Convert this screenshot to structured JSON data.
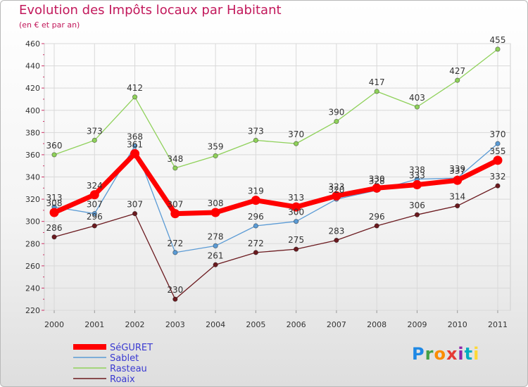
{
  "header": {
    "title": "Evolution des Impôts locaux par Habitant",
    "subtitle": "(en € et par an)"
  },
  "logo": {
    "letters": [
      "P",
      "r",
      "o",
      "x",
      "i",
      "t",
      "i"
    ]
  },
  "chart_data": {
    "type": "line",
    "title": "Evolution des Impôts locaux par Habitant",
    "subtitle": "(en € et par an)",
    "xlabel": "",
    "ylabel": "",
    "categories": [
      "2000",
      "2001",
      "2002",
      "2003",
      "2004",
      "2005",
      "2006",
      "2007",
      "2008",
      "2009",
      "2010",
      "2011"
    ],
    "ylim": [
      220,
      460
    ],
    "yticks": [
      220,
      240,
      260,
      280,
      300,
      320,
      340,
      360,
      380,
      400,
      420,
      440,
      460
    ],
    "grid": true,
    "legend_position": "bottom-left",
    "series": [
      {
        "name": "Roaix",
        "color": "#6b1a1f",
        "values": [
          286,
          296,
          307,
          230,
          261,
          272,
          275,
          283,
          296,
          306,
          314,
          332
        ],
        "labels": [
          "286",
          "296",
          "307",
          "230",
          "261",
          "272",
          "275",
          "283",
          "296",
          "306",
          "314",
          "332"
        ]
      },
      {
        "name": "Rasteau",
        "color": "#8fd15a",
        "values": [
          360,
          373,
          412,
          348,
          359,
          373,
          370,
          390,
          417,
          403,
          427,
          455
        ],
        "labels": [
          "360",
          "373",
          "412",
          "348",
          "359",
          "373",
          "370",
          "390",
          "417",
          "403",
          "427",
          "455"
        ]
      },
      {
        "name": "Sablet",
        "color": "#5b9bd5",
        "values": [
          313,
          307,
          368,
          272,
          278,
          296,
          300,
          320,
          328,
          338,
          339,
          370
        ],
        "labels": [
          "313",
          "307",
          "368",
          "272",
          "278",
          "296",
          "300",
          "320",
          "328",
          "338",
          "339",
          "370"
        ]
      },
      {
        "name": "SéGURET",
        "color": "#ff0000",
        "values": [
          308,
          324,
          361,
          307,
          308,
          319,
          313,
          323,
          330,
          333,
          337,
          355
        ],
        "labels": [
          "308",
          "324",
          "361",
          "307",
          "308",
          "319",
          "313",
          "323",
          "330",
          "333",
          "337",
          "355"
        ]
      }
    ],
    "legend": [
      "SéGURET",
      "Sablet",
      "Rasteau",
      "Roaix"
    ]
  }
}
